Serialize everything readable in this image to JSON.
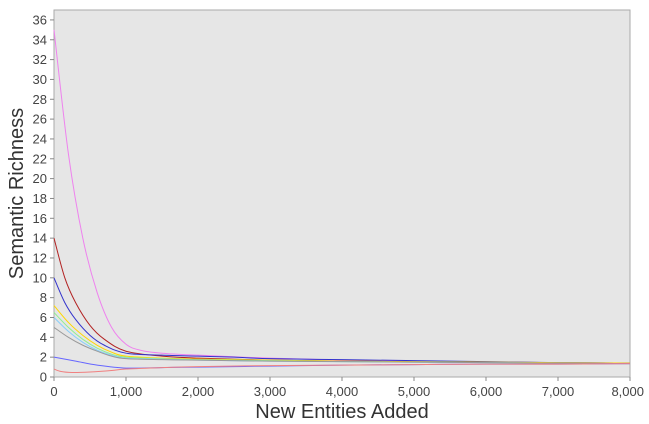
{
  "chart_data": {
    "type": "line",
    "title": "",
    "xlabel": "New Entities Added",
    "ylabel": "Semantic Richness",
    "xlim": [
      0,
      8000
    ],
    "ylim": [
      0,
      37
    ],
    "x_ticks": [
      0,
      1000,
      2000,
      3000,
      4000,
      5000,
      6000,
      7000,
      8000
    ],
    "x_tick_labels": [
      "0",
      "1,000",
      "2,000",
      "3,000",
      "4,000",
      "5,000",
      "6,000",
      "7,000",
      "8,000"
    ],
    "y_ticks": [
      0,
      2,
      4,
      6,
      8,
      10,
      12,
      14,
      16,
      18,
      20,
      22,
      24,
      26,
      28,
      30,
      32,
      34,
      36
    ],
    "y_tick_labels": [
      "0",
      "2",
      "4",
      "6",
      "8",
      "10",
      "12",
      "14",
      "16",
      "18",
      "20",
      "22",
      "24",
      "26",
      "28",
      "30",
      "32",
      "34",
      "36"
    ],
    "grid": false,
    "legend": "none",
    "plot_background": "#e6e6e6",
    "series": [
      {
        "color": "#ee82ee",
        "x": [
          0,
          200,
          400,
          600,
          800,
          1000,
          1200,
          1500,
          2000,
          3000,
          4000,
          5000,
          6000,
          7000,
          8000
        ],
        "y": [
          35,
          22.5,
          14,
          8.5,
          5,
          3.3,
          2.7,
          2.4,
          2.2,
          1.9,
          1.7,
          1.6,
          1.5,
          1.45,
          1.4
        ]
      },
      {
        "color": "#b22222",
        "x": [
          0,
          150,
          300,
          500,
          700,
          1000,
          1500,
          2000,
          3000,
          4000,
          5000,
          6000,
          7000,
          8000
        ],
        "y": [
          14,
          10,
          7.5,
          5.2,
          3.8,
          2.6,
          2.1,
          1.9,
          1.7,
          1.6,
          1.55,
          1.5,
          1.45,
          1.4
        ]
      },
      {
        "color": "#3333cc",
        "x": [
          0,
          150,
          300,
          500,
          700,
          1000,
          1500,
          2000,
          2500,
          3000,
          4000,
          5000,
          6000,
          7000,
          8000
        ],
        "y": [
          10,
          7.5,
          5.8,
          4.2,
          3.2,
          2.4,
          2.2,
          2.1,
          2.0,
          1.85,
          1.75,
          1.65,
          1.55,
          1.45,
          1.4
        ]
      },
      {
        "color": "#ffd700",
        "x": [
          0,
          200,
          400,
          600,
          800,
          1000,
          1500,
          2000,
          3000,
          4000,
          5000,
          6000,
          7000,
          8000
        ],
        "y": [
          7.2,
          5.5,
          4.2,
          3.2,
          2.5,
          2.1,
          1.9,
          1.8,
          1.7,
          1.6,
          1.55,
          1.5,
          1.45,
          1.4
        ]
      },
      {
        "color": "#90ee90",
        "x": [
          0,
          200,
          400,
          600,
          800,
          1000,
          1500,
          2000,
          3000,
          4000,
          5000,
          6000,
          7000,
          8000
        ],
        "y": [
          6.5,
          5.0,
          3.8,
          2.9,
          2.3,
          2.0,
          1.85,
          1.75,
          1.65,
          1.55,
          1.5,
          1.45,
          1.4,
          1.35
        ]
      },
      {
        "color": "#87cefa",
        "x": [
          0,
          200,
          400,
          600,
          800,
          1000,
          1500,
          2000,
          3000,
          4000,
          5000,
          6000,
          7000,
          8000
        ],
        "y": [
          6.0,
          4.6,
          3.5,
          2.7,
          2.2,
          1.9,
          1.8,
          1.7,
          1.6,
          1.55,
          1.5,
          1.45,
          1.4,
          1.35
        ]
      },
      {
        "color": "#999999",
        "x": [
          0,
          200,
          400,
          600,
          800,
          1000,
          1500,
          2000,
          3000,
          4000,
          5000,
          6000,
          7000,
          8000
        ],
        "y": [
          5.0,
          4.0,
          3.2,
          2.6,
          2.1,
          1.85,
          1.75,
          1.7,
          1.6,
          1.55,
          1.5,
          1.45,
          1.4,
          1.35
        ]
      },
      {
        "color": "#6666ff",
        "x": [
          0,
          300,
          600,
          1000,
          1500,
          2000,
          3000,
          4000,
          5000,
          6000,
          7000,
          8000
        ],
        "y": [
          2.0,
          1.6,
          1.2,
          0.9,
          0.95,
          1.0,
          1.1,
          1.2,
          1.25,
          1.3,
          1.3,
          1.35
        ]
      },
      {
        "color": "#f08080",
        "x": [
          0,
          100,
          250,
          500,
          800,
          1000,
          1500,
          2000,
          3000,
          4000,
          5000,
          6000,
          7000,
          8000
        ],
        "y": [
          0.8,
          0.55,
          0.45,
          0.5,
          0.65,
          0.8,
          0.95,
          1.05,
          1.15,
          1.2,
          1.25,
          1.3,
          1.3,
          1.35
        ]
      }
    ]
  }
}
